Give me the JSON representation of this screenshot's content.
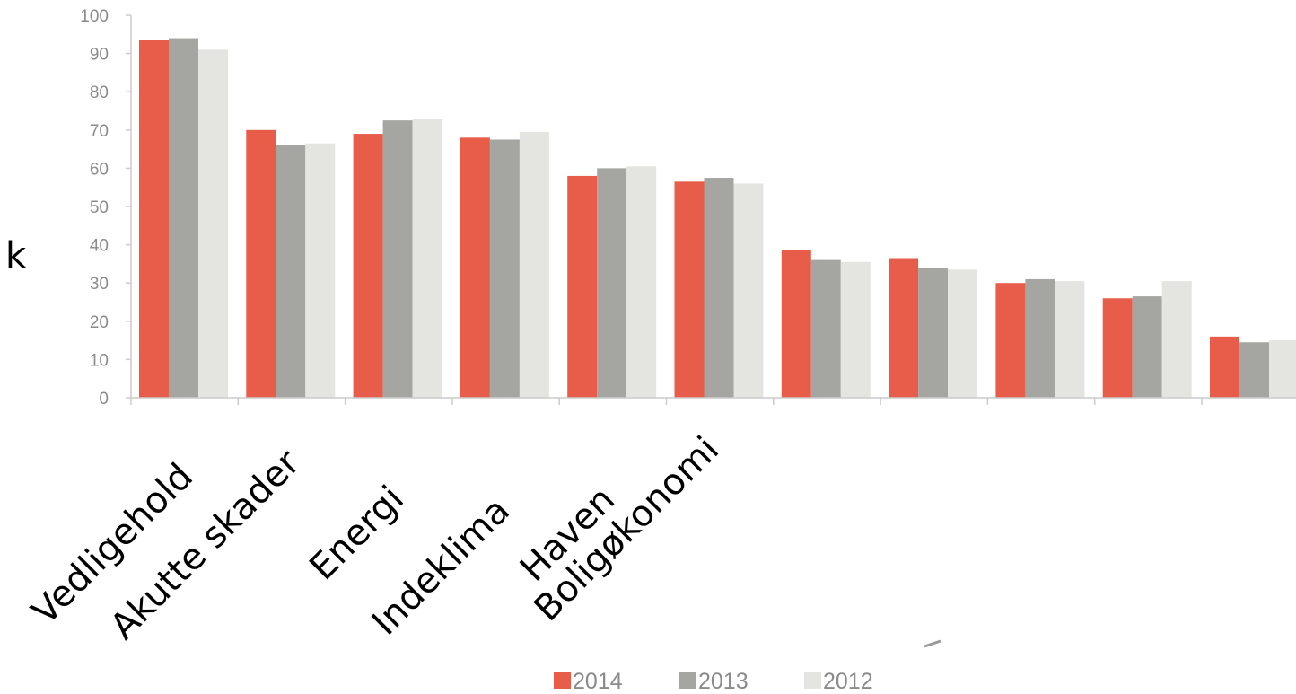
{
  "chart_data": {
    "type": "bar",
    "categories": [
      "Vedligehold",
      "Akutte skader",
      "Energi",
      "Indeklima",
      "Haven",
      "Boligøkonomi",
      "",
      "",
      "",
      "",
      ""
    ],
    "series": [
      {
        "name": "2014",
        "color": "#e85c4a",
        "values": [
          93.5,
          70,
          69,
          68,
          58,
          56.5,
          38.5,
          36.5,
          30,
          26,
          16
        ]
      },
      {
        "name": "2013",
        "color": "#a5a5a1",
        "values": [
          94,
          66,
          72.5,
          67.5,
          60,
          57.5,
          36,
          34,
          31,
          26.5,
          14.5
        ]
      },
      {
        "name": "2012",
        "color": "#e4e4e0",
        "values": [
          91,
          66.5,
          73,
          69.5,
          60.5,
          56,
          35.5,
          33.5,
          30.5,
          30.5,
          15
        ]
      }
    ],
    "yticks": [
      "0",
      "10",
      "20",
      "30",
      "40",
      "50",
      "60",
      "70",
      "80",
      "90",
      "100"
    ],
    "ylim": [
      0,
      100
    ],
    "legend": "bottom",
    "grid": false,
    "stray_text": "k"
  }
}
